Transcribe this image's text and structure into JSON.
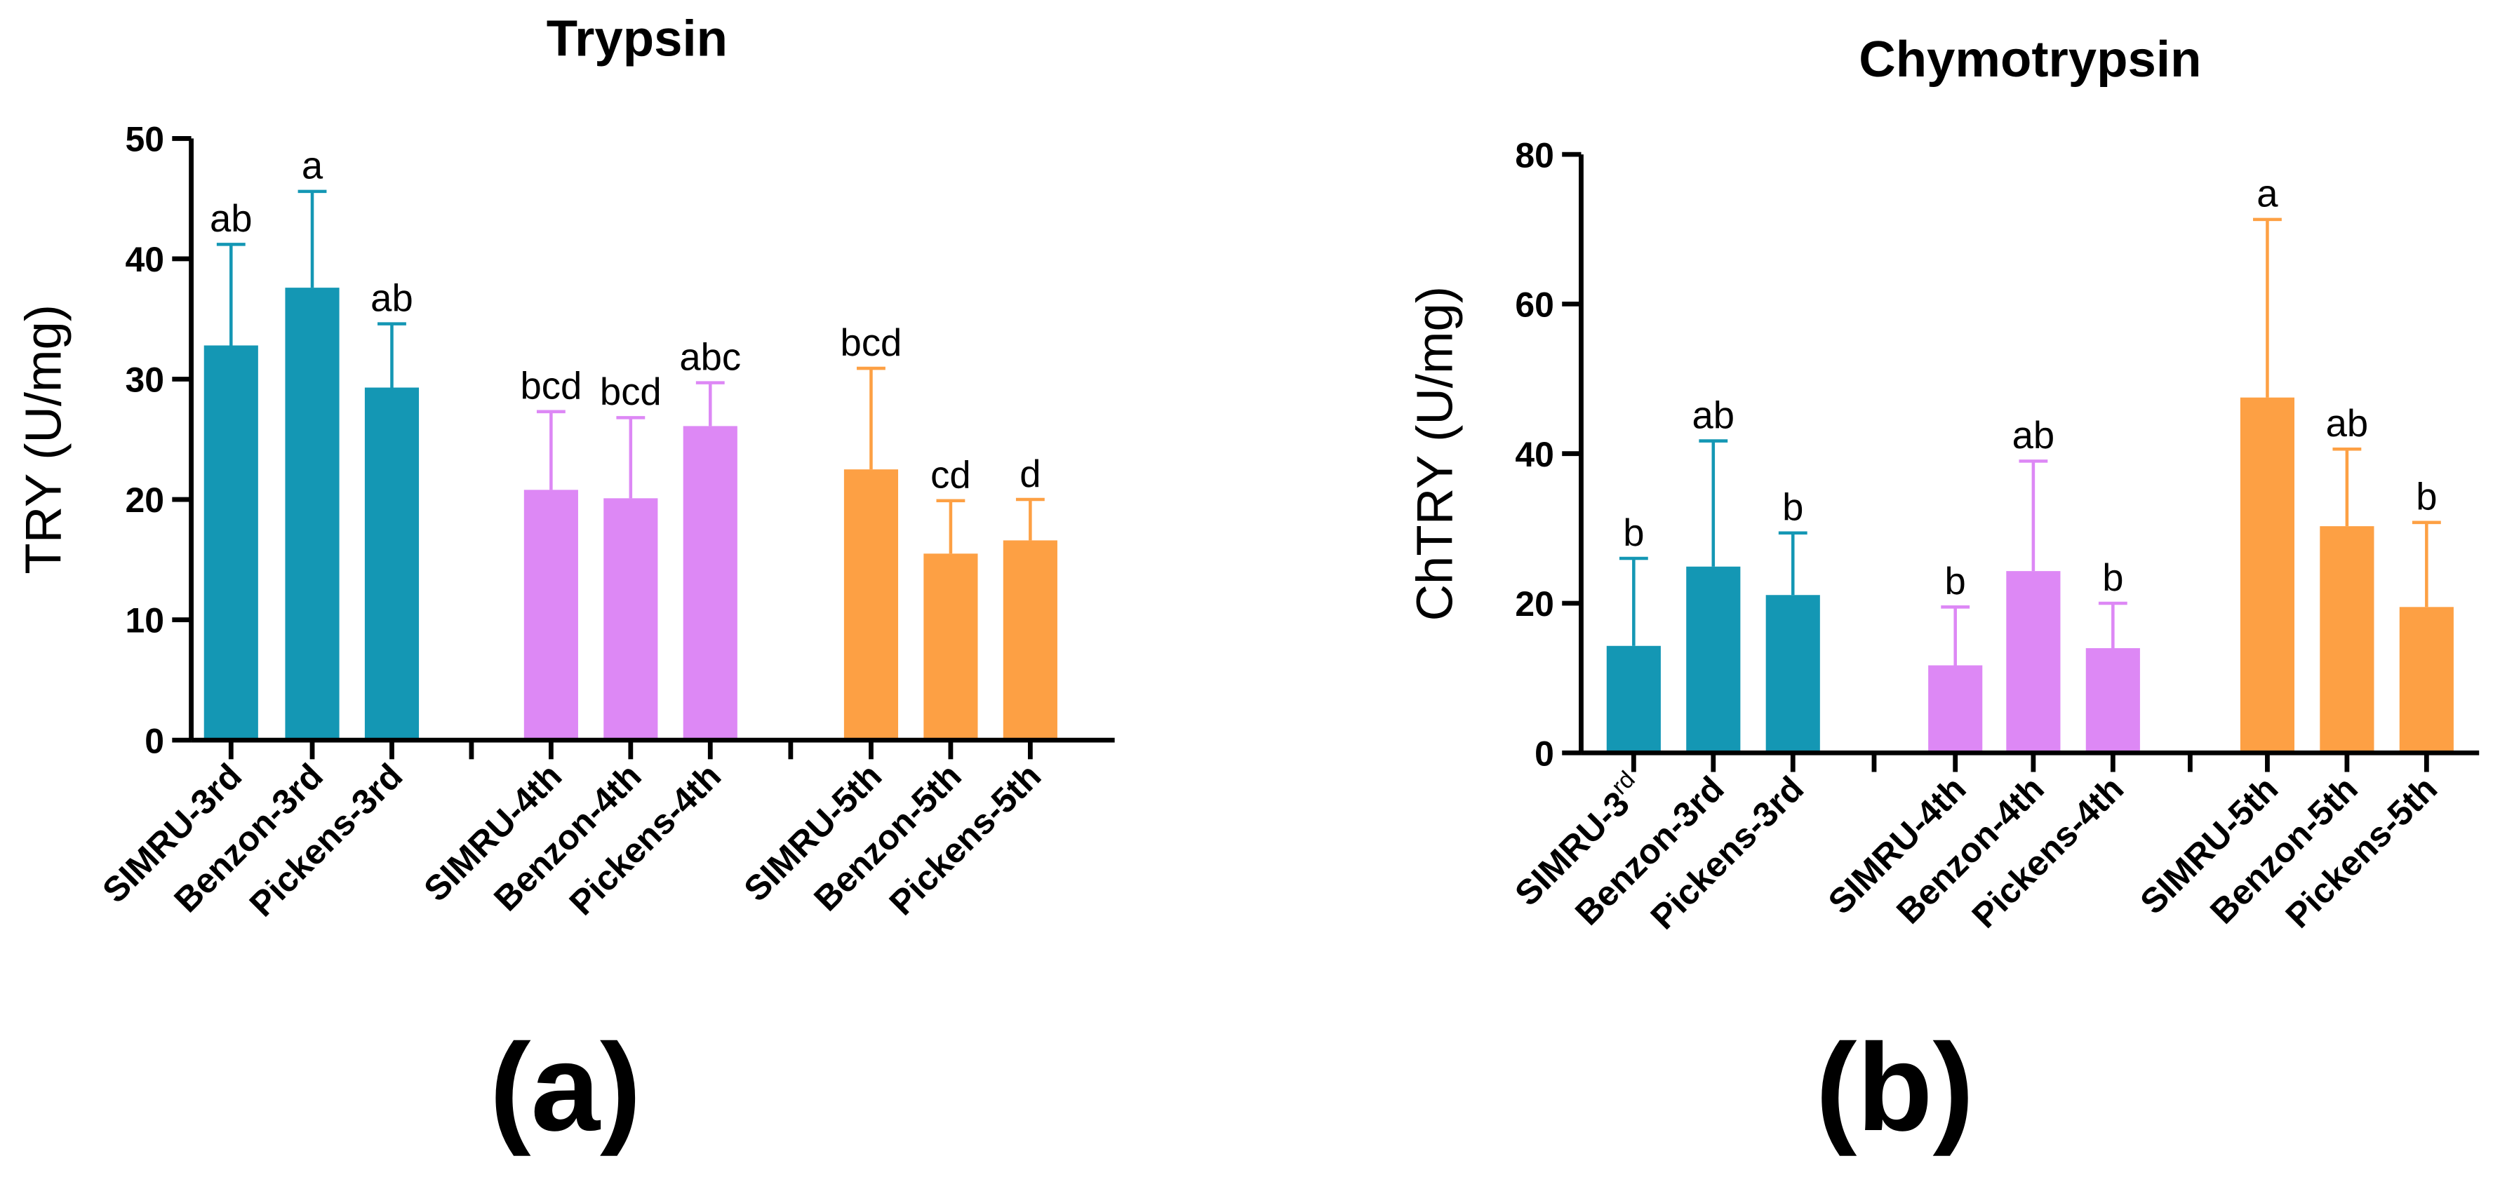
{
  "colors": {
    "3rd": "#1497b4",
    "4th": "#dd88f5",
    "5th": "#fda044"
  },
  "chart_data": [
    {
      "type": "bar",
      "title": "Trypsin",
      "panel": "(a)",
      "ylabel": "TRY (U/mg)",
      "ylim": [
        0,
        50
      ],
      "yticks": [
        0,
        10,
        20,
        30,
        40,
        50
      ],
      "categories": [
        "SIMRU-3rd",
        "Benzon-3rd",
        "Pickens-3rd",
        "SIMRU-4th",
        "Benzon-4th",
        "Pickens-4th",
        "SIMRU-5th",
        "Benzon-5th",
        "Pickens-5th"
      ],
      "groups": [
        "3rd",
        "3rd",
        "3rd",
        "4th",
        "4th",
        "4th",
        "5th",
        "5th",
        "5th"
      ],
      "values": [
        32.8,
        37.6,
        29.3,
        20.8,
        20.1,
        26.1,
        22.5,
        15.5,
        16.6
      ],
      "error_upper": [
        41.2,
        45.6,
        34.6,
        27.3,
        26.8,
        29.7,
        30.9,
        19.9,
        20.0
      ],
      "significance": [
        "ab",
        "a",
        "ab",
        "bcd",
        "bcd",
        "abc",
        "bcd",
        "cd",
        "d"
      ]
    },
    {
      "type": "bar",
      "title": "Chymotrypsin",
      "panel": "(b)",
      "ylabel": "ChTRY (U/mg)",
      "ylim": [
        0,
        80
      ],
      "yticks": [
        0,
        20,
        40,
        60,
        80
      ],
      "categories": [
        "SIMRU-3rd",
        "Benzon-3rd",
        "Pickens-3rd",
        "SIMRU-4th",
        "Benzon-4th",
        "Pickens-4th",
        "SIMRU-5th",
        "Benzon-5th",
        "Pickens-5th"
      ],
      "groups": [
        "3rd",
        "3rd",
        "3rd",
        "4th",
        "4th",
        "4th",
        "5th",
        "5th",
        "5th"
      ],
      "values": [
        14.3,
        24.9,
        21.1,
        11.7,
        24.3,
        14.0,
        47.5,
        30.3,
        19.5
      ],
      "error_upper": [
        26.0,
        41.7,
        29.4,
        19.5,
        39.0,
        20.0,
        71.3,
        40.6,
        30.8
      ],
      "significance": [
        "b",
        "ab",
        "b",
        "b",
        "ab",
        "b",
        "a",
        "ab",
        "b"
      ]
    }
  ]
}
